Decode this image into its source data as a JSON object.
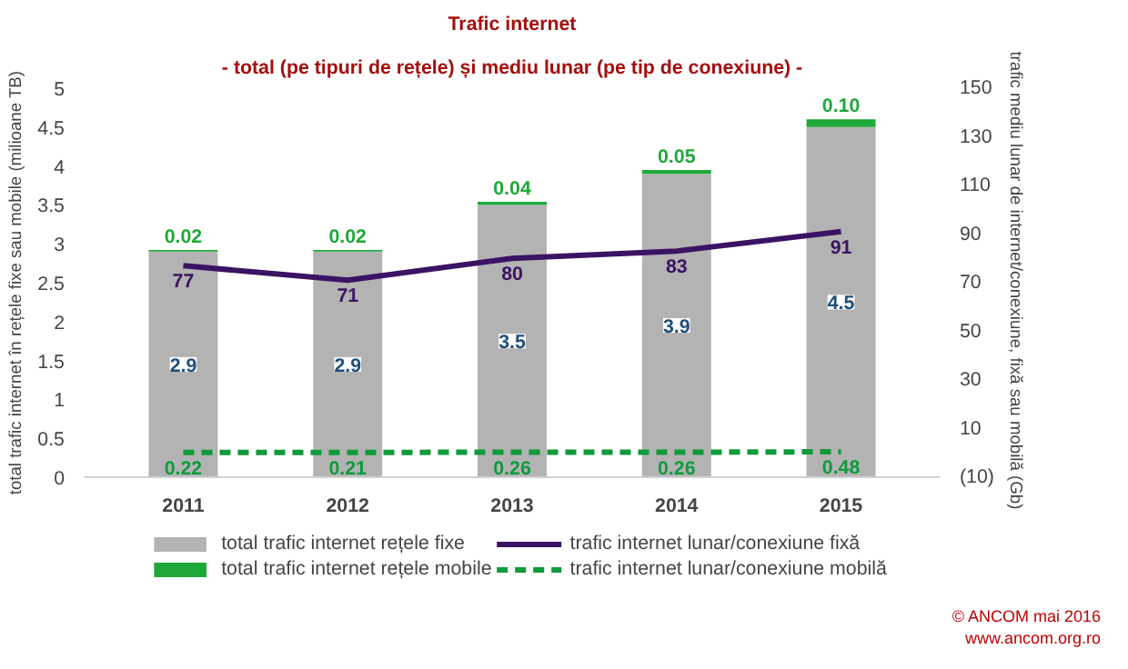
{
  "chart_data": {
    "type": "bar",
    "stacked": true,
    "title": "Trafic internet",
    "subtitle": "- total (pe tipuri de rețele) și mediu lunar (pe tip de conexiune) -",
    "ylabel": "total trafic internet în rețele fixe sau mobile (milioane TB)",
    "y2label": "trafic mediu lunar de internet/conexiune, fixă sau mobilă  (Gb)",
    "categories": [
      "2011",
      "2012",
      "2013",
      "2014",
      "2015"
    ],
    "series": [
      {
        "name": "total trafic internet rețele fixe",
        "color": "#b3b3b3",
        "values": [
          2.9,
          2.9,
          3.5,
          3.9,
          4.5
        ]
      },
      {
        "name": "total trafic internet rețele mobile",
        "color": "#1fa83a",
        "values": [
          0.02,
          0.02,
          0.04,
          0.05,
          0.1
        ],
        "value_labels": [
          "0.02",
          "0.02",
          "0.04",
          "0.05",
          "0.10"
        ]
      },
      {
        "name": "trafic internet lunar/conexiune fixă",
        "type": "line",
        "axis": "y2",
        "color": "#3b1363",
        "line_style": "solid",
        "values": [
          77,
          71,
          80,
          83,
          91
        ]
      },
      {
        "name": "trafic internet lunar/conexiune mobilă",
        "type": "line",
        "axis": "y2",
        "color": "#0f9a3c",
        "line_style": "dashed",
        "values": [
          0.22,
          0.21,
          0.26,
          0.26,
          0.48
        ]
      }
    ],
    "ylim": [
      0,
      5
    ],
    "yticks": [
      0,
      0.5,
      1,
      1.5,
      2,
      2.5,
      3,
      3.5,
      4,
      4.5,
      5
    ],
    "y2lim": [
      -10,
      150
    ],
    "y2ticks": [
      {
        "value": -10,
        "label": "(10)"
      },
      10,
      30,
      50,
      70,
      90,
      110,
      130,
      150
    ],
    "data_labels": true,
    "grid": false,
    "legend": "bottom",
    "marker": "none",
    "annotations": [
      "© ANCOM mai 2016",
      "www.ancom.org.ro"
    ]
  }
}
